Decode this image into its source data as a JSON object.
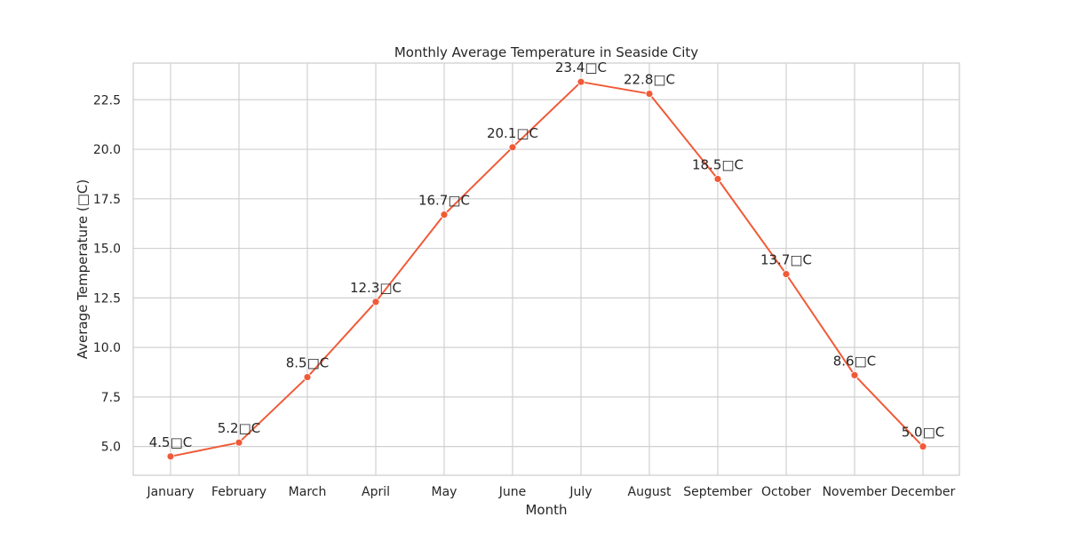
{
  "chart_data": {
    "type": "line",
    "title": "Monthly Average Temperature in Seaside City",
    "xlabel": "Month",
    "ylabel": "Average Temperature (□C)",
    "categories": [
      "January",
      "February",
      "March",
      "April",
      "May",
      "June",
      "July",
      "August",
      "September",
      "October",
      "November",
      "December"
    ],
    "series": [
      {
        "values": [
          4.5,
          5.2,
          8.5,
          12.3,
          16.7,
          20.1,
          23.4,
          22.8,
          18.5,
          13.7,
          8.6,
          5.0
        ]
      }
    ],
    "data_labels": [
      "4.5□C",
      "5.2□C",
      "8.5□C",
      "12.3□C",
      "16.7□C",
      "20.1□C",
      "23.4□C",
      "22.8□C",
      "18.5□C",
      "13.7□C",
      "8.6□C",
      "5.0□C"
    ],
    "ylim": [
      3.55,
      24.35
    ],
    "yticks": [
      "5.0",
      "7.5",
      "10.0",
      "12.5",
      "15.0",
      "17.5",
      "20.0",
      "22.5"
    ],
    "grid": true,
    "line_color": "#f05a37",
    "grid_color": "#d0d0d0",
    "frame_color": "#cccccc"
  }
}
